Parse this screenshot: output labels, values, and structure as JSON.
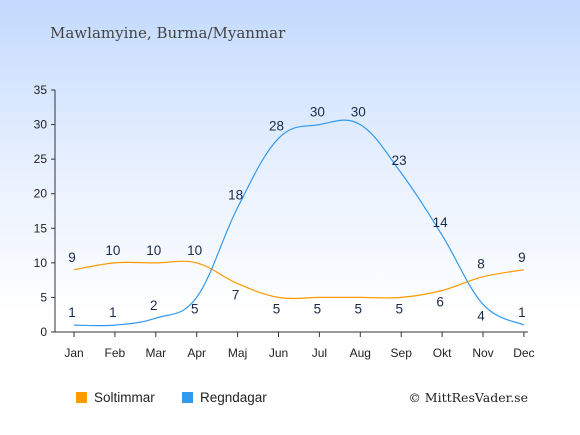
{
  "chart_data": {
    "type": "line",
    "title": "Mawlamyine, Burma/Myanmar",
    "categories": [
      "Jan",
      "Feb",
      "Mar",
      "Apr",
      "Maj",
      "Jun",
      "Jul",
      "Aug",
      "Sep",
      "Okt",
      "Nov",
      "Dec"
    ],
    "ylim": [
      0,
      35
    ],
    "yticks": [
      0,
      5,
      10,
      15,
      20,
      25,
      30,
      35
    ],
    "grid": false,
    "legend_position": "bottom-left",
    "series": [
      {
        "name": "Soltimmar",
        "color": "#ff9900",
        "values": [
          9,
          10,
          10,
          10,
          7,
          5,
          5,
          5,
          5,
          6,
          8,
          9
        ]
      },
      {
        "name": "Regndagar",
        "color": "#3399ee",
        "values": [
          1,
          1,
          2,
          5,
          18,
          28,
          30,
          30,
          23,
          14,
          4,
          1
        ]
      }
    ],
    "credit": "© MittResVader.se"
  }
}
